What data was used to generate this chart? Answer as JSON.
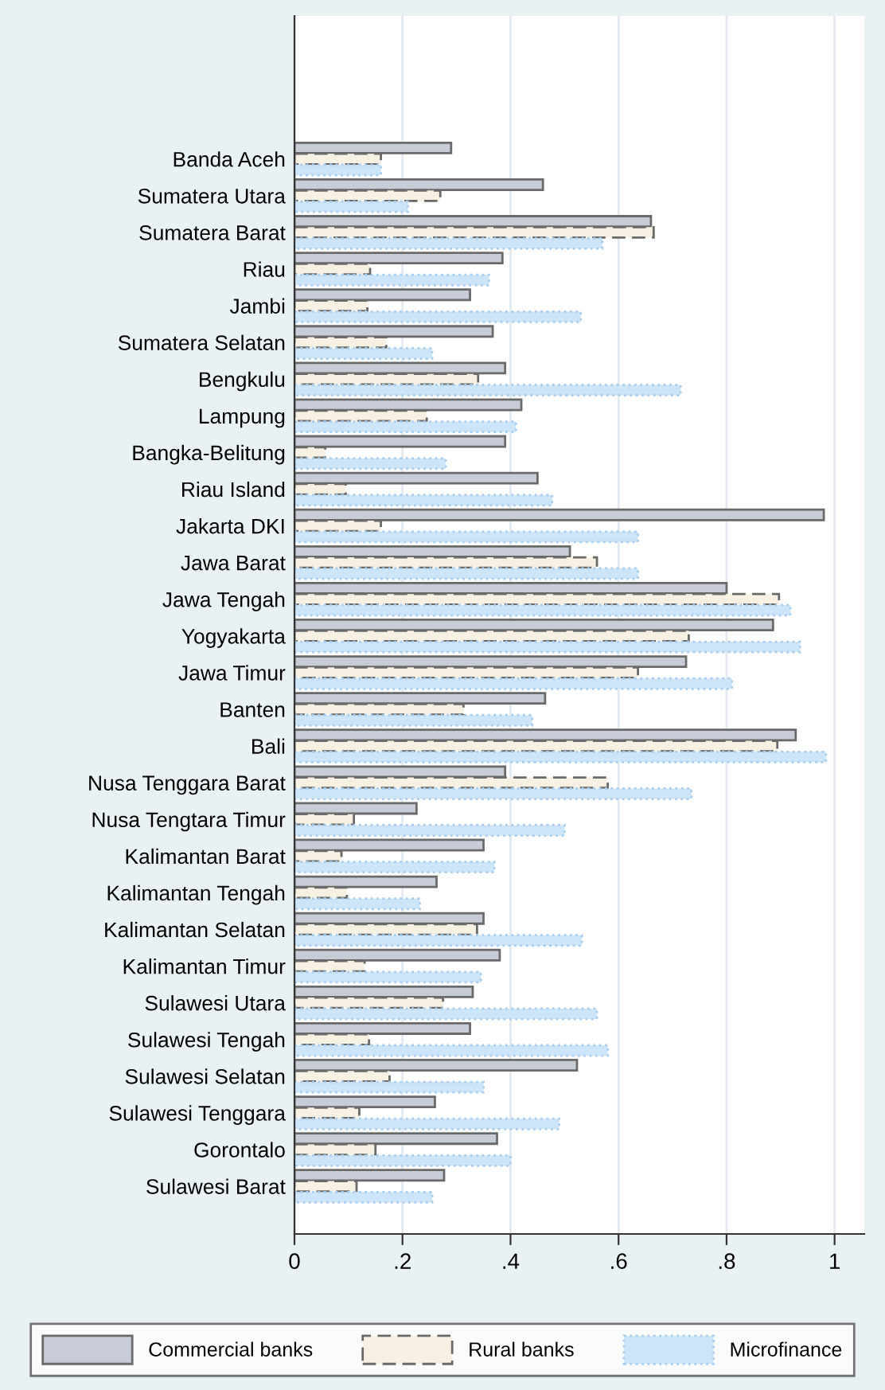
{
  "chart_data": {
    "type": "bar",
    "orientation": "horizontal",
    "categories": [
      "Banda Aceh",
      "Sumatera Utara",
      "Sumatera Barat",
      "Riau",
      "Jambi",
      "Sumatera Selatan",
      "Bengkulu",
      "Lampung",
      "Bangka-Belitung",
      "Riau Island",
      "Jakarta DKI",
      "Jawa Barat",
      "Jawa Tengah",
      "Yogyakarta",
      "Jawa Timur",
      "Banten",
      "Bali",
      "Nusa Tenggara Barat",
      "Nusa Tengtara Timur",
      "Kalimantan Barat",
      "Kalimantan Tengah",
      "Kalimantan Selatan",
      "Kalimantan Timur",
      "Sulawesi Utara",
      "Sulawesi Tengah",
      "Sulawesi Selatan",
      "Sulawesi Tenggara",
      "Gorontalo",
      "Sulawesi Barat"
    ],
    "series": [
      {
        "name": "Commercial banks",
        "color": "#c8ccd6",
        "line_style": "solid",
        "values": [
          0.29,
          0.46,
          0.66,
          0.385,
          0.325,
          0.367,
          0.39,
          0.42,
          0.39,
          0.45,
          0.98,
          0.51,
          0.8,
          0.886,
          0.725,
          0.464,
          0.928,
          0.39,
          0.226,
          0.35,
          0.263,
          0.35,
          0.38,
          0.33,
          0.325,
          0.523,
          0.26,
          0.375,
          0.277
        ]
      },
      {
        "name": "Rural banks",
        "color": "#f6f1e2",
        "line_style": "dashed",
        "values": [
          0.16,
          0.27,
          0.665,
          0.14,
          0.135,
          0.17,
          0.34,
          0.245,
          0.057,
          0.095,
          0.16,
          0.56,
          0.897,
          0.73,
          0.636,
          0.313,
          0.894,
          0.58,
          0.11,
          0.087,
          0.097,
          0.338,
          0.13,
          0.275,
          0.138,
          0.176,
          0.12,
          0.15,
          0.115
        ]
      },
      {
        "name": "Microfinance",
        "color": "#cde5f8",
        "line_style": "dotted",
        "values": [
          0.16,
          0.21,
          0.57,
          0.36,
          0.53,
          0.255,
          0.715,
          0.41,
          0.28,
          0.477,
          0.636,
          0.636,
          0.918,
          0.936,
          0.81,
          0.44,
          0.984,
          0.735,
          0.5,
          0.37,
          0.232,
          0.532,
          0.345,
          0.56,
          0.58,
          0.35,
          0.49,
          0.4,
          0.255
        ]
      }
    ],
    "xlim": [
      0,
      1.055
    ],
    "xticks": [
      0,
      {
        "value": 0.2,
        "label": ".2"
      },
      {
        "value": 0.4,
        "label": ".4"
      },
      {
        "value": 0.6,
        "label": ".6"
      },
      {
        "value": 0.8,
        "label": ".8"
      },
      1
    ],
    "grid": "x",
    "legend": "bottom"
  }
}
